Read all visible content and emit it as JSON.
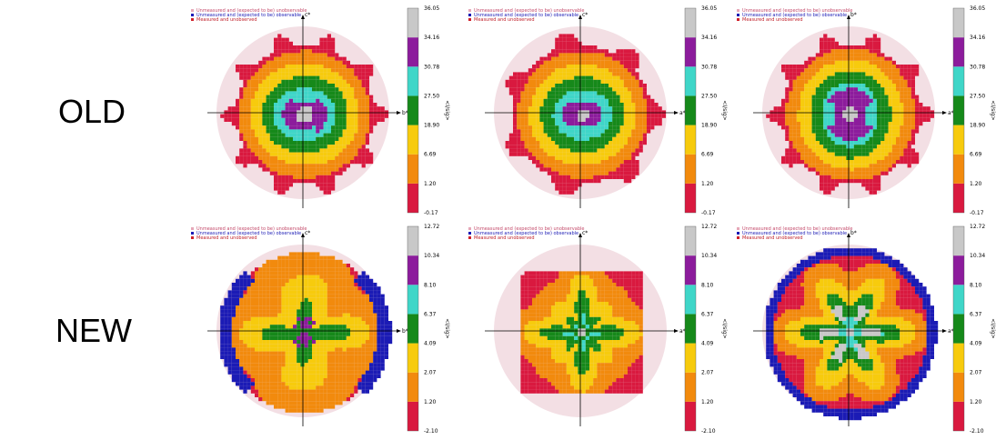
{
  "rows": [
    {
      "label": "OLD"
    },
    {
      "label": "NEW"
    }
  ],
  "legend": {
    "items": [
      {
        "label": "Unmeasured and (expected to be) unobservable",
        "color": "#e6a8b8"
      },
      {
        "label": "Unmeasured and (expected to be) observable",
        "color": "#1b1bb5"
      },
      {
        "label": "Measured and unobserved",
        "color": "#d0202a"
      }
    ]
  },
  "colorbar_colors": [
    "#d9193f",
    "#f28a0d",
    "#f7cb0d",
    "#16891a",
    "#3fd6c8",
    "#8c1c9c",
    "#c8c8c8"
  ],
  "chart_data": [
    {
      "type": "heatmap",
      "row": "OLD",
      "xlabel": "b*",
      "ylabel": "c*",
      "cbar_label": "<I/sig>",
      "ticks": [
        "36.05",
        "34.16",
        "30.78",
        "27.50",
        "18.90",
        "6.69",
        "1.20",
        "-0.17"
      ],
      "pattern": "old_bc",
      "blue_ring": false
    },
    {
      "type": "heatmap",
      "row": "OLD",
      "xlabel": "a*",
      "ylabel": "c*",
      "cbar_label": "<I/sig>",
      "ticks": [
        "36.05",
        "34.16",
        "30.78",
        "27.50",
        "18.90",
        "6.69",
        "1.20",
        "-0.17"
      ],
      "pattern": "old_ac",
      "blue_ring": false
    },
    {
      "type": "heatmap",
      "row": "OLD",
      "xlabel": "a*",
      "ylabel": "b*",
      "cbar_label": "<I/sig>",
      "ticks": [
        "36.05",
        "34.16",
        "30.78",
        "27.50",
        "18.90",
        "6.69",
        "1.20",
        "-0.17"
      ],
      "pattern": "old_ab",
      "blue_ring": false
    },
    {
      "type": "heatmap",
      "row": "NEW",
      "xlabel": "b*",
      "ylabel": "c*",
      "cbar_label": "<I/sig>",
      "ticks": [
        "12.72",
        "10.34",
        "8.10",
        "6.37",
        "4.09",
        "2.07",
        "1.20",
        "-2.10"
      ],
      "pattern": "new_bc",
      "blue_ring": true
    },
    {
      "type": "heatmap",
      "row": "NEW",
      "xlabel": "a*",
      "ylabel": "c*",
      "cbar_label": "<I/sig>",
      "ticks": [
        "12.72",
        "10.34",
        "8.10",
        "6.37",
        "4.09",
        "2.07",
        "1.20",
        "-2.10"
      ],
      "pattern": "new_ac",
      "blue_ring": false
    },
    {
      "type": "heatmap",
      "row": "NEW",
      "xlabel": "a*",
      "ylabel": "b*",
      "cbar_label": "<I/sig>",
      "ticks": [
        "12.72",
        "10.34",
        "8.10",
        "6.37",
        "4.09",
        "2.07",
        "1.20",
        "-2.10"
      ],
      "pattern": "new_ab",
      "blue_ring": true
    }
  ]
}
